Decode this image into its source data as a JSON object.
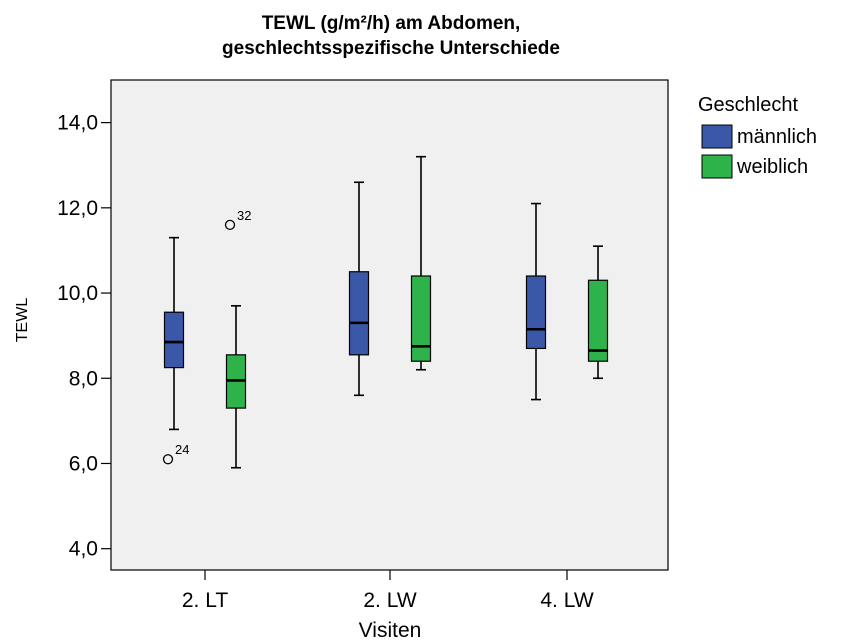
{
  "chart_data": {
    "type": "boxplot",
    "title_line1": "TEWL (g/m²/h) am Abdomen,",
    "title_line2": "geschlechtsspezifische Unterschiede",
    "xlabel": "Visiten",
    "ylabel": "TEWL",
    "ylim": [
      3.5,
      15.0
    ],
    "yticks": [
      4.0,
      6.0,
      8.0,
      10.0,
      12.0,
      14.0
    ],
    "ytick_labels": [
      "4,0",
      "6,0",
      "8,0",
      "10,0",
      "12,0",
      "14,0"
    ],
    "categories": [
      "2. LT",
      "2. LW",
      "4. LW"
    ],
    "legend": {
      "title": "Geschlecht",
      "entries": [
        "männlich",
        "weiblich"
      ]
    },
    "colors": {
      "männlich": "#3a57a8",
      "weiblich": "#2db34a",
      "plot_bg": "#f0f0f0"
    },
    "series": [
      {
        "name": "männlich",
        "boxes": [
          {
            "whisker_low": 6.8,
            "q1": 8.25,
            "median": 8.85,
            "q3": 9.55,
            "whisker_high": 11.3
          },
          {
            "whisker_low": 7.6,
            "q1": 8.55,
            "median": 9.3,
            "q3": 10.5,
            "whisker_high": 12.6
          },
          {
            "whisker_low": 7.5,
            "q1": 8.7,
            "median": 9.15,
            "q3": 10.4,
            "whisker_high": 12.1
          }
        ],
        "outliers": [
          {
            "category": "2. LT",
            "value": 6.1,
            "label": "24"
          }
        ]
      },
      {
        "name": "weiblich",
        "boxes": [
          {
            "whisker_low": 5.9,
            "q1": 7.3,
            "median": 7.95,
            "q3": 8.55,
            "whisker_high": 9.7
          },
          {
            "whisker_low": 8.2,
            "q1": 8.4,
            "median": 8.75,
            "q3": 10.4,
            "whisker_high": 13.2
          },
          {
            "whisker_low": 8.0,
            "q1": 8.4,
            "median": 8.65,
            "q3": 10.3,
            "whisker_high": 11.1
          }
        ],
        "outliers": [
          {
            "category": "2. LT",
            "value": 11.6,
            "label": "32"
          }
        ]
      }
    ]
  }
}
